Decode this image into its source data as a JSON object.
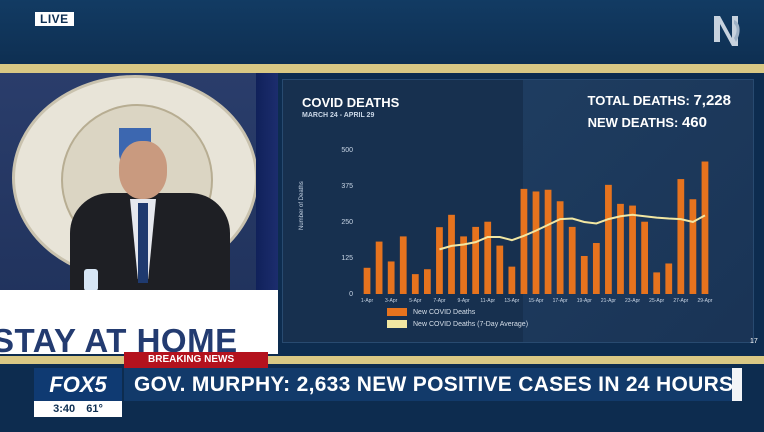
{
  "top": {
    "live_label": "LIVE",
    "channel_logo": "nj-logo-icon"
  },
  "video": {
    "banner_text": "STAY AT HOME"
  },
  "panel": {
    "title": "COVID DEATHS",
    "subtitle": "MARCH 24 - APRIL 29",
    "total_label": "TOTAL DEATHS:",
    "total_value": "7,228",
    "new_label": "NEW DEATHS:",
    "new_value": "460",
    "page_number": "17",
    "legend": [
      {
        "label": "New COVID Deaths",
        "color": "#e6731e"
      },
      {
        "label": "New COVID Deaths (7-Day Average)",
        "color": "#f2e7a2"
      }
    ]
  },
  "chart_data": {
    "type": "bar",
    "title": "COVID DEATHS",
    "subtitle": "MARCH 24 - APRIL 29",
    "ylabel": "Number of Deaths",
    "xlabel": "",
    "ylim": [
      0,
      500
    ],
    "yticks": [
      0,
      125,
      250,
      375,
      500
    ],
    "xtick_labels": [
      "1-Apr",
      "3-Apr",
      "5-Apr",
      "7-Apr",
      "9-Apr",
      "11-Apr",
      "13-Apr",
      "15-Apr",
      "17-Apr",
      "19-Apr",
      "21-Apr",
      "23-Apr",
      "25-Apr",
      "27-Apr",
      "29-Apr"
    ],
    "categories": [
      "1-Apr",
      "2-Apr",
      "3-Apr",
      "4-Apr",
      "5-Apr",
      "6-Apr",
      "7-Apr",
      "8-Apr",
      "9-Apr",
      "10-Apr",
      "11-Apr",
      "12-Apr",
      "13-Apr",
      "14-Apr",
      "15-Apr",
      "16-Apr",
      "17-Apr",
      "18-Apr",
      "19-Apr",
      "20-Apr",
      "21-Apr",
      "22-Apr",
      "23-Apr",
      "24-Apr",
      "25-Apr",
      "26-Apr",
      "27-Apr",
      "28-Apr",
      "29-Apr"
    ],
    "series": [
      {
        "name": "New COVID Deaths",
        "color": "#e6731e",
        "values": [
          91,
          182,
          113,
          200,
          69,
          86,
          232,
          275,
          200,
          233,
          251,
          168,
          95,
          365,
          356,
          362,
          322,
          233,
          132,
          177,
          379,
          313,
          307,
          251,
          75,
          106,
          399,
          329,
          460
        ]
      },
      {
        "name": "New COVID Deaths (7-Day Average)",
        "color": "#f2e7a2",
        "values": [
          null,
          null,
          null,
          null,
          null,
          null,
          155,
          167,
          172,
          180,
          198,
          198,
          187,
          202,
          220,
          240,
          260,
          262,
          250,
          245,
          260,
          270,
          275,
          270,
          265,
          262,
          260,
          250,
          273
        ]
      }
    ],
    "grid": false,
    "legend_position": "bottom-left"
  },
  "lower_third": {
    "breaking_label": "BREAKING NEWS",
    "headline": "GOV. MURPHY: 2,633 NEW POSITIVE CASES IN 24 HOURS",
    "station": "FOX5",
    "time": "3:40",
    "temperature": "61°"
  }
}
